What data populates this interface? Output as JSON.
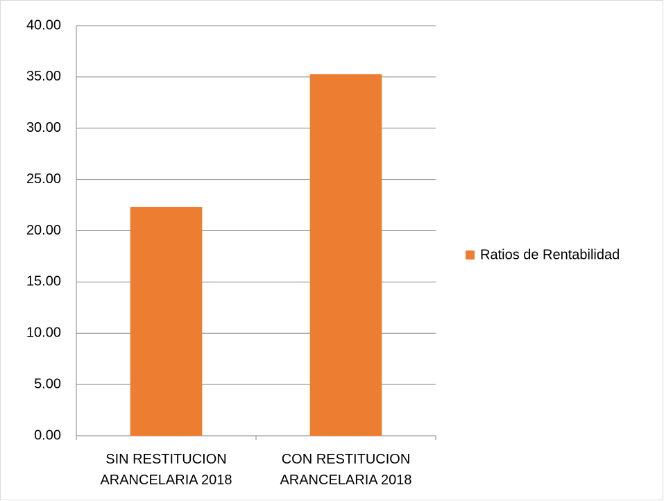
{
  "chart_data": {
    "type": "bar",
    "categories": [
      "SIN RESTITUCION ARANCELARIA 2018",
      "CON RESTITUCION ARANCELARIA 2018"
    ],
    "series": [
      {
        "name": "Ratios de Rentabilidad",
        "color": "#ed7d31",
        "values": [
          22.33,
          35.26
        ]
      }
    ],
    "ylim": [
      0,
      40
    ],
    "yticks": [
      {
        "value": 0,
        "label": "0.00"
      },
      {
        "value": 5,
        "label": "5.00"
      },
      {
        "value": 10,
        "label": "10.00"
      },
      {
        "value": 15,
        "label": "15.00"
      },
      {
        "value": 20,
        "label": "20.00"
      },
      {
        "value": 25,
        "label": "25.00"
      },
      {
        "value": 30,
        "label": "30.00"
      },
      {
        "value": 35,
        "label": "35.00"
      },
      {
        "value": 40,
        "label": "40.00"
      }
    ],
    "grid": true,
    "legend": "right"
  }
}
